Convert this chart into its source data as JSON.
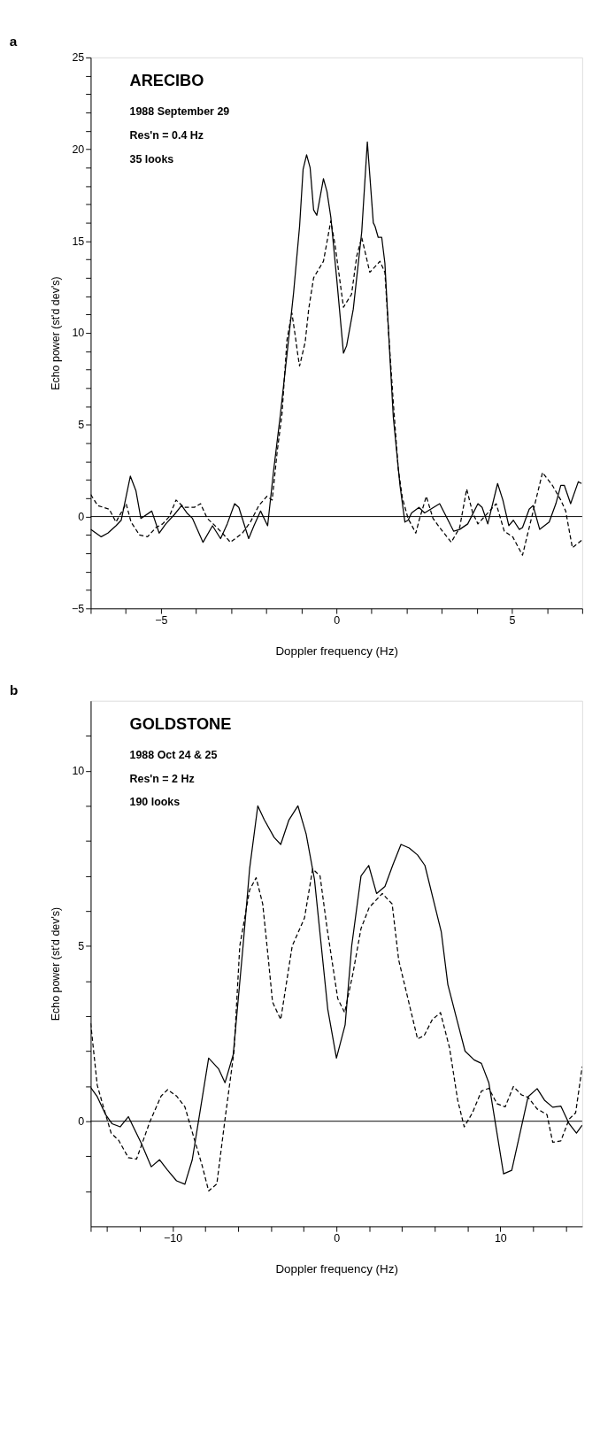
{
  "chart_data": [
    {
      "type": "line",
      "title": "a",
      "xlabel": "Doppler frequency (Hz)",
      "ylabel": "Echo power (st'd dev's)",
      "annotations": [
        "ARECIBO",
        "1988 September 29",
        "Res'n = 0.4 Hz",
        "35 looks"
      ],
      "xlim": [
        -7,
        7
      ],
      "ylim": [
        -5,
        25
      ],
      "xticks": [
        {
          "value": -7,
          "label": null
        },
        {
          "value": -6,
          "label": null
        },
        -5,
        {
          "value": -4,
          "label": null
        },
        {
          "value": -3,
          "label": null
        },
        {
          "value": -2,
          "label": null
        },
        {
          "value": -1,
          "label": null
        },
        0,
        {
          "value": 1,
          "label": null
        },
        {
          "value": 2,
          "label": null
        },
        {
          "value": 3,
          "label": null
        },
        {
          "value": 4,
          "label": null
        },
        5,
        {
          "value": 6,
          "label": null
        },
        {
          "value": 7,
          "label": null
        }
      ],
      "yticks": [
        -5,
        {
          "value": -4,
          "label": null
        },
        {
          "value": -3,
          "label": null
        },
        {
          "value": -2,
          "label": null
        },
        {
          "value": -1,
          "label": null
        },
        0,
        {
          "value": 1,
          "label": null
        },
        {
          "value": 2,
          "label": null
        },
        {
          "value": 3,
          "label": null
        },
        {
          "value": 4,
          "label": null
        },
        5,
        {
          "value": 6,
          "label": null
        },
        {
          "value": 7,
          "label": null
        },
        {
          "value": 8,
          "label": null
        },
        {
          "value": 9,
          "label": null
        },
        10,
        {
          "value": 11,
          "label": null
        },
        {
          "value": 12,
          "label": null
        },
        {
          "value": 13,
          "label": null
        },
        {
          "value": 14,
          "label": null
        },
        15,
        {
          "value": 16,
          "label": null
        },
        {
          "value": 17,
          "label": null
        },
        {
          "value": 18,
          "label": null
        },
        {
          "value": 19,
          "label": null
        },
        20,
        {
          "value": 21,
          "label": null
        },
        {
          "value": 22,
          "label": null
        },
        {
          "value": 23,
          "label": null
        },
        {
          "value": 24,
          "label": null
        },
        25
      ],
      "grid": false,
      "ref_lines": [
        {
          "axis": "y",
          "value": 0,
          "color": "#000000"
        }
      ],
      "series": [
        {
          "color": "#000000",
          "line_style": "solid",
          "x": [
            -7,
            -6.7,
            -6.51,
            -6.28,
            -6.13,
            -5.87,
            -5.71,
            -5.57,
            -5.26,
            -5.05,
            -4.86,
            -4.62,
            -4.41,
            -4.26,
            -4.1,
            -3.8,
            -3.53,
            -3.3,
            -3.11,
            -2.9,
            -2.78,
            -2.5,
            -2.35,
            -2.16,
            -1.96,
            -1.79,
            -1.6,
            -1.41,
            -1.22,
            -1.05,
            -0.95,
            -0.85,
            -0.75,
            -0.65,
            -0.56,
            -0.37,
            -0.27,
            -0.16,
            0.01,
            0.2,
            0.29,
            0.48,
            0.72,
            0.88,
            1.05,
            1.1,
            1.19,
            1.29,
            1.38,
            1.52,
            1.62,
            1.81,
            1.95,
            2.04,
            2.14,
            2.35,
            2.51,
            2.94,
            3.34,
            3.51,
            3.74,
            4.03,
            4.15,
            4.31,
            4.59,
            4.74,
            4.91,
            5.04,
            5.21,
            5.3,
            5.49,
            5.6,
            5.79,
            6.06,
            6.25,
            6.39,
            6.49,
            6.67,
            6.89,
            6.98
          ],
          "values": [
            -0.7,
            -1.1,
            -0.9,
            -0.5,
            -0.2,
            2.2,
            1.4,
            -0.1,
            0.3,
            -0.9,
            -0.4,
            0.1,
            0.6,
            0.2,
            -0.1,
            -1.4,
            -0.5,
            -1.2,
            -0.4,
            0.7,
            0.5,
            -1.2,
            -0.5,
            0.3,
            -0.5,
            2.5,
            5.5,
            8.8,
            12.2,
            15.8,
            18.9,
            19.7,
            19.0,
            16.7,
            16.4,
            18.4,
            17.7,
            16.3,
            12.9,
            8.9,
            9.3,
            11.3,
            15.5,
            20.4,
            16.0,
            15.8,
            15.2,
            15.2,
            13.8,
            8.8,
            5.4,
            1.7,
            -0.3,
            -0.2,
            0.2,
            0.5,
            0.2,
            0.7,
            -0.8,
            -0.7,
            -0.4,
            0.7,
            0.5,
            -0.4,
            1.8,
            0.9,
            -0.5,
            -0.2,
            -0.7,
            -0.6,
            0.4,
            0.6,
            -0.7,
            -0.3,
            0.7,
            1.7,
            1.7,
            0.7,
            1.9,
            1.8
          ]
        },
        {
          "color": "#000000",
          "line_style": "dashed",
          "x": [
            -7,
            -6.8,
            -6.47,
            -6.28,
            -5.99,
            -5.85,
            -5.61,
            -5.38,
            -5.14,
            -4.95,
            -4.76,
            -4.57,
            -4.34,
            -4.05,
            -3.87,
            -3.68,
            -3.51,
            -3.25,
            -3.02,
            -2.68,
            -2.45,
            -2.21,
            -1.98,
            -1.83,
            -1.69,
            -1.55,
            -1.41,
            -1.27,
            -1.17,
            -1.1,
            -1.05,
            -0.89,
            -0.79,
            -0.65,
            -0.37,
            -0.16,
            -0.04,
            0.2,
            0.43,
            0.58,
            0.72,
            0.95,
            1.24,
            1.38,
            1.5,
            1.62,
            1.76,
            1.88,
            2.04,
            2.26,
            2.37,
            2.56,
            2.75,
            2.94,
            3.27,
            3.51,
            3.71,
            3.88,
            4.03,
            4.36,
            4.55,
            4.78,
            5.02,
            5.3,
            5.49,
            5.87,
            6.15,
            6.39,
            6.53,
            6.72,
            6.98
          ],
          "values": [
            1.2,
            0.6,
            0.4,
            -0.3,
            0.7,
            -0.3,
            -1.0,
            -1.1,
            -0.6,
            -0.4,
            0.0,
            0.9,
            0.5,
            0.5,
            0.7,
            -0.1,
            -0.4,
            -0.9,
            -1.4,
            -0.9,
            -0.3,
            0.6,
            1.1,
            0.9,
            3.5,
            5.6,
            9.6,
            11.1,
            9.8,
            8.8,
            8.2,
            9.5,
            11.3,
            13.0,
            13.9,
            16.1,
            14.8,
            11.4,
            12.1,
            14.2,
            15.2,
            13.3,
            13.9,
            13.3,
            9.6,
            6.2,
            2.6,
            1.0,
            -0.1,
            -0.9,
            -0.1,
            1.1,
            -0.1,
            -0.6,
            -1.4,
            -0.6,
            1.5,
            0.2,
            -0.4,
            0.3,
            0.7,
            -0.8,
            -1.1,
            -2.1,
            -0.6,
            2.4,
            1.7,
            0.9,
            0.3,
            -1.7,
            -1.3
          ]
        }
      ]
    },
    {
      "type": "line",
      "title": "b",
      "xlabel": "Doppler frequency (Hz)",
      "ylabel": "Echo power (st'd dev's)",
      "annotations": [
        "GOLDSTONE",
        "1988 Oct 24 & 25",
        "Res'n = 2 Hz",
        "190 looks"
      ],
      "xlim": [
        -15,
        15
      ],
      "ylim": [
        -3,
        12
      ],
      "xticks": [
        {
          "value": -15,
          "label": null
        },
        {
          "value": -14,
          "label": null
        },
        {
          "value": -12,
          "label": null
        },
        -10,
        {
          "value": -8,
          "label": null
        },
        {
          "value": -6,
          "label": null
        },
        {
          "value": -4,
          "label": null
        },
        {
          "value": -2,
          "label": null
        },
        0,
        {
          "value": 2,
          "label": null
        },
        {
          "value": 4,
          "label": null
        },
        {
          "value": 6,
          "label": null
        },
        {
          "value": 8,
          "label": null
        },
        10,
        {
          "value": 12,
          "label": null
        },
        {
          "value": 14,
          "label": null
        }
      ],
      "yticks": [
        {
          "value": -2,
          "label": null
        },
        {
          "value": -1,
          "label": null
        },
        0,
        {
          "value": 1,
          "label": null
        },
        {
          "value": 2,
          "label": null
        },
        {
          "value": 3,
          "label": null
        },
        {
          "value": 4,
          "label": null
        },
        5,
        {
          "value": 6,
          "label": null
        },
        {
          "value": 7,
          "label": null
        },
        {
          "value": 8,
          "label": null
        },
        {
          "value": 9,
          "label": null
        },
        10,
        {
          "value": 11,
          "label": null
        }
      ],
      "grid": false,
      "ref_lines": [
        {
          "axis": "y",
          "value": 0,
          "color": "#000000"
        }
      ],
      "series": [
        {
          "color": "#000000",
          "line_style": "solid",
          "x": [
            -15.0,
            -14.6,
            -14.1,
            -13.7,
            -13.2,
            -12.7,
            -11.9,
            -11.3,
            -10.8,
            -10.3,
            -9.76,
            -9.25,
            -8.8,
            -7.8,
            -7.2,
            -6.8,
            -6.3,
            -5.7,
            -5.3,
            -4.8,
            -4.4,
            -3.8,
            -3.4,
            -2.9,
            -2.35,
            -1.85,
            -1.34,
            -0.53,
            0,
            0.53,
            0.93,
            1.5,
            1.97,
            2.45,
            2.96,
            3.43,
            3.94,
            4.44,
            4.95,
            5.4,
            6.4,
            6.8,
            7.35,
            7.85,
            8.4,
            8.85,
            9.3,
            10.2,
            10.7,
            11.7,
            12.25,
            12.7,
            13.2,
            13.7,
            14.2,
            14.65,
            15.0
          ],
          "values": [
            0.96,
            0.7,
            0.2,
            -0.07,
            -0.16,
            0.13,
            -0.64,
            -1.3,
            -1.1,
            -1.4,
            -1.7,
            -1.8,
            -1.1,
            1.8,
            1.5,
            1.1,
            1.9,
            5.0,
            7.2,
            9.0,
            8.6,
            8.1,
            7.9,
            8.6,
            9.0,
            8.2,
            6.9,
            3.2,
            1.8,
            2.75,
            5.0,
            7.0,
            7.3,
            6.5,
            6.7,
            7.3,
            7.9,
            7.8,
            7.6,
            7.3,
            5.4,
            3.9,
            2.9,
            2.0,
            1.75,
            1.65,
            1.1,
            -1.5,
            -1.4,
            0.7,
            0.93,
            0.6,
            0.4,
            0.43,
            -0.07,
            -0.34,
            -0.11
          ]
        },
        {
          "color": "#000000",
          "line_style": "dashed",
          "x": [
            -15,
            -14.6,
            -14.2,
            -13.75,
            -13.3,
            -12.7,
            -12.2,
            -11.4,
            -10.7,
            -10.3,
            -9.76,
            -9.25,
            -8.7,
            -8.2,
            -7.8,
            -7.3,
            -6.8,
            -6.25,
            -5.9,
            -5.3,
            -4.9,
            -4.5,
            -4.15,
            -3.9,
            -3.4,
            -2.7,
            -1.95,
            -1.45,
            -1.0,
            -0.57,
            0.08,
            0.5,
            1.0,
            1.5,
            2.0,
            2.8,
            3.4,
            3.8,
            4.95,
            5.35,
            5.85,
            6.35,
            6.9,
            7.4,
            7.8,
            8.3,
            8.85,
            9.3,
            9.8,
            10.3,
            10.8,
            11.3,
            11.7,
            12.25,
            12.85,
            13.2,
            13.7,
            14.2,
            14.6,
            15.0
          ],
          "values": [
            2.8,
            1.03,
            0.37,
            -0.34,
            -0.54,
            -1.04,
            -1.08,
            -0.03,
            0.72,
            0.9,
            0.72,
            0.41,
            -0.47,
            -1.26,
            -1.99,
            -1.79,
            0.06,
            2.0,
            5.0,
            6.6,
            6.95,
            6.2,
            4.6,
            3.4,
            2.9,
            5.0,
            5.8,
            7.2,
            7.0,
            5.5,
            3.5,
            3.1,
            4.2,
            5.5,
            6.1,
            6.5,
            6.2,
            4.6,
            2.35,
            2.44,
            2.9,
            3.1,
            2.1,
            0.6,
            -0.16,
            0.24,
            0.86,
            0.94,
            0.5,
            0.41,
            0.99,
            0.75,
            0.68,
            0.35,
            0.19,
            -0.6,
            -0.56,
            0.06,
            0.24,
            1.56
          ]
        }
      ]
    }
  ]
}
